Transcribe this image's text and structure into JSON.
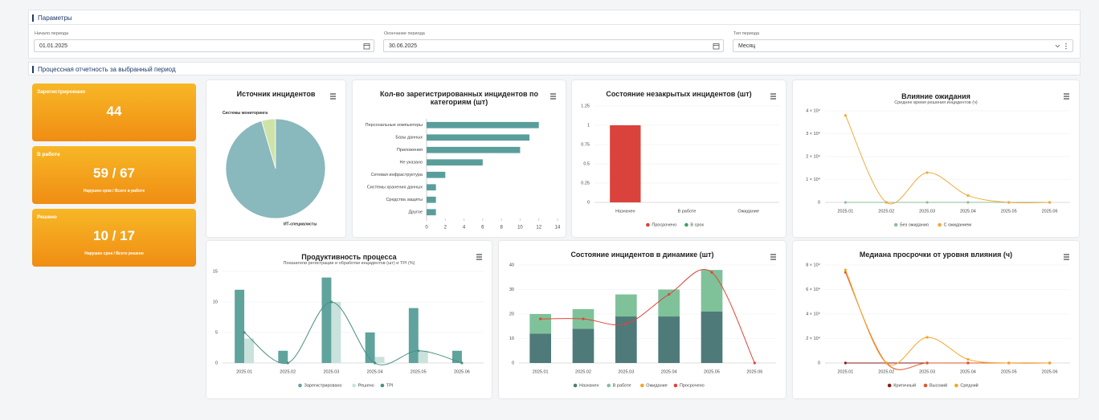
{
  "params": {
    "title": "Параметры",
    "fields": [
      {
        "label": "Начало периода",
        "value": "01.01.2025"
      },
      {
        "label": "Окончание периода",
        "value": "30.06.2025"
      },
      {
        "label": "Тип периода",
        "value": "Месяц"
      }
    ]
  },
  "section_title": "Процессная отчетность за выбранный период",
  "kpis": [
    {
      "title": "Зарегистрировано",
      "value": 44
    },
    {
      "title": "В работе",
      "value": "59 / 67",
      "note": "Нарушен срок / Всего в работе"
    },
    {
      "title": "Решено",
      "value": "10 / 17",
      "note": "Нарушен срок / Всего решено"
    }
  ],
  "chart_data": [
    {
      "type": "pie",
      "title": "Источник инцидентов",
      "categories": [
        "Системы мониторинга",
        "ИТ-специалисты"
      ],
      "values": [
        2,
        42
      ],
      "colors": [
        "#cfe3a9",
        "#89b8bd"
      ]
    },
    {
      "type": "bar",
      "horizontal": true,
      "title": "Кол-во зарегистрированных инцидентов по категориям (шт)",
      "categories": [
        "Персональные компьютеры",
        "Базы данных",
        "Приложения",
        "Не указано",
        "Сетевая инфраструктура",
        "Системы хранения данных",
        "Средства защиты",
        "Другое"
      ],
      "values": [
        12,
        11,
        10,
        6,
        2,
        1,
        1,
        1
      ],
      "color": "#5a9e9c",
      "xlim": [
        0,
        14
      ],
      "xticks": [
        0,
        2,
        4,
        6,
        8,
        10,
        12,
        14
      ]
    },
    {
      "type": "bar",
      "stacked": true,
      "title": "Состояние незакрытых инцидентов (шт)",
      "categories": [
        "Назначен",
        "В работе",
        "Ожидание"
      ],
      "series": [
        {
          "name": "Просрочено",
          "color": "#d9433b",
          "values": [
            1,
            0,
            0
          ]
        },
        {
          "name": "В срок",
          "color": "#3aa55a",
          "values": [
            0,
            0,
            0
          ]
        }
      ],
      "ylim": [
        0,
        1.25
      ],
      "yticks": [
        0,
        0.25,
        0.5,
        0.75,
        1,
        1.25
      ]
    },
    {
      "type": "line",
      "title": "Влияние ожидания",
      "subtitle": "Среднее время решения инцидентов (ч)",
      "categories": [
        "2025.01",
        "2025.02",
        "2025.03",
        "2025.04",
        "2025.05",
        "2025.06"
      ],
      "series": [
        {
          "name": "Без ожидания",
          "color": "#8fbf9a",
          "values": [
            0,
            0,
            0,
            0,
            0,
            0
          ]
        },
        {
          "name": "С ожиданием",
          "color": "#f2a93b",
          "values": [
            38000,
            0,
            13000,
            3000,
            0,
            0
          ]
        }
      ],
      "ylim": [
        0,
        40000
      ],
      "yticks": [
        0,
        {
          "value": 10000,
          "label": "1 × 10⁴"
        },
        {
          "value": 20000,
          "label": "2 × 10⁴"
        },
        {
          "value": 30000,
          "label": "3 × 10⁴"
        },
        {
          "value": 40000,
          "label": "4 × 10⁴"
        }
      ]
    },
    {
      "type": "combo",
      "stacked": false,
      "title": "Продуктивность процесса",
      "subtitle": "Показатели регистрации и обработки инцидентов (шт) и TPI (%)",
      "categories": [
        "2025.01",
        "2025.02",
        "2025.03",
        "2025.04",
        "2025.05",
        "2025.06"
      ],
      "series": [
        {
          "name": "Зарегистрировано",
          "kind": "bar",
          "color": "#5fa39c",
          "values": [
            12,
            2,
            14,
            5,
            9,
            2
          ]
        },
        {
          "name": "Решено",
          "kind": "bar",
          "color": "#c9e2dc",
          "values": [
            4,
            0,
            10,
            1,
            2,
            0
          ]
        },
        {
          "name": "TPI",
          "kind": "line",
          "color": "#4a8f83",
          "values": [
            5,
            0,
            10,
            0,
            2,
            0
          ]
        }
      ],
      "ylim": [
        0,
        15
      ],
      "yticks": [
        0,
        5,
        10,
        15
      ]
    },
    {
      "type": "combo",
      "stacked": true,
      "title": "Состояние инцидентов в динамике (шт)",
      "categories": [
        "2025.01",
        "2025.02",
        "2025.03",
        "2025.04",
        "2025.05",
        "2025.06"
      ],
      "series": [
        {
          "name": "Назначен",
          "kind": "bar",
          "color": "#4f7a7a",
          "values": [
            12,
            14,
            19,
            19,
            21,
            0
          ]
        },
        {
          "name": "В работе",
          "kind": "bar",
          "color": "#7fc29a",
          "values": [
            8,
            8,
            9,
            11,
            17,
            0
          ]
        },
        {
          "name": "Ожидание",
          "kind": "bar",
          "color": "#f5a623",
          "values": [
            0,
            0,
            0,
            0,
            0,
            0
          ]
        },
        {
          "name": "Просрочено",
          "kind": "line",
          "color": "#e0443a",
          "values": [
            18,
            18,
            16,
            28,
            37,
            0
          ]
        }
      ],
      "ylim": [
        0,
        40
      ],
      "yticks": [
        0,
        10,
        20,
        30,
        40
      ]
    },
    {
      "type": "line",
      "title": "Медиана просрочки от уровня влияния (ч)",
      "categories": [
        "2025.01",
        "2025.02",
        "2025.03",
        "2025.04",
        "2025.05",
        "2025.06"
      ],
      "series": [
        {
          "name": "Критичный",
          "color": "#8b1a1a",
          "values": [
            0,
            0,
            0,
            0,
            0,
            0
          ]
        },
        {
          "name": "Высокий",
          "color": "#e2552b",
          "values": [
            74000,
            0,
            0,
            0,
            0,
            0
          ]
        },
        {
          "name": "Средний",
          "color": "#f5a623",
          "values": [
            76000,
            0,
            21000,
            3000,
            0,
            0
          ]
        }
      ],
      "ylim": [
        0,
        80000
      ],
      "yticks": [
        0,
        {
          "value": 20000,
          "label": "2 × 10⁴"
        },
        {
          "value": 40000,
          "label": "4 × 10⁴"
        },
        {
          "value": 60000,
          "label": "6 × 10⁴"
        },
        {
          "value": 80000,
          "label": "8 × 10⁴"
        }
      ]
    }
  ]
}
